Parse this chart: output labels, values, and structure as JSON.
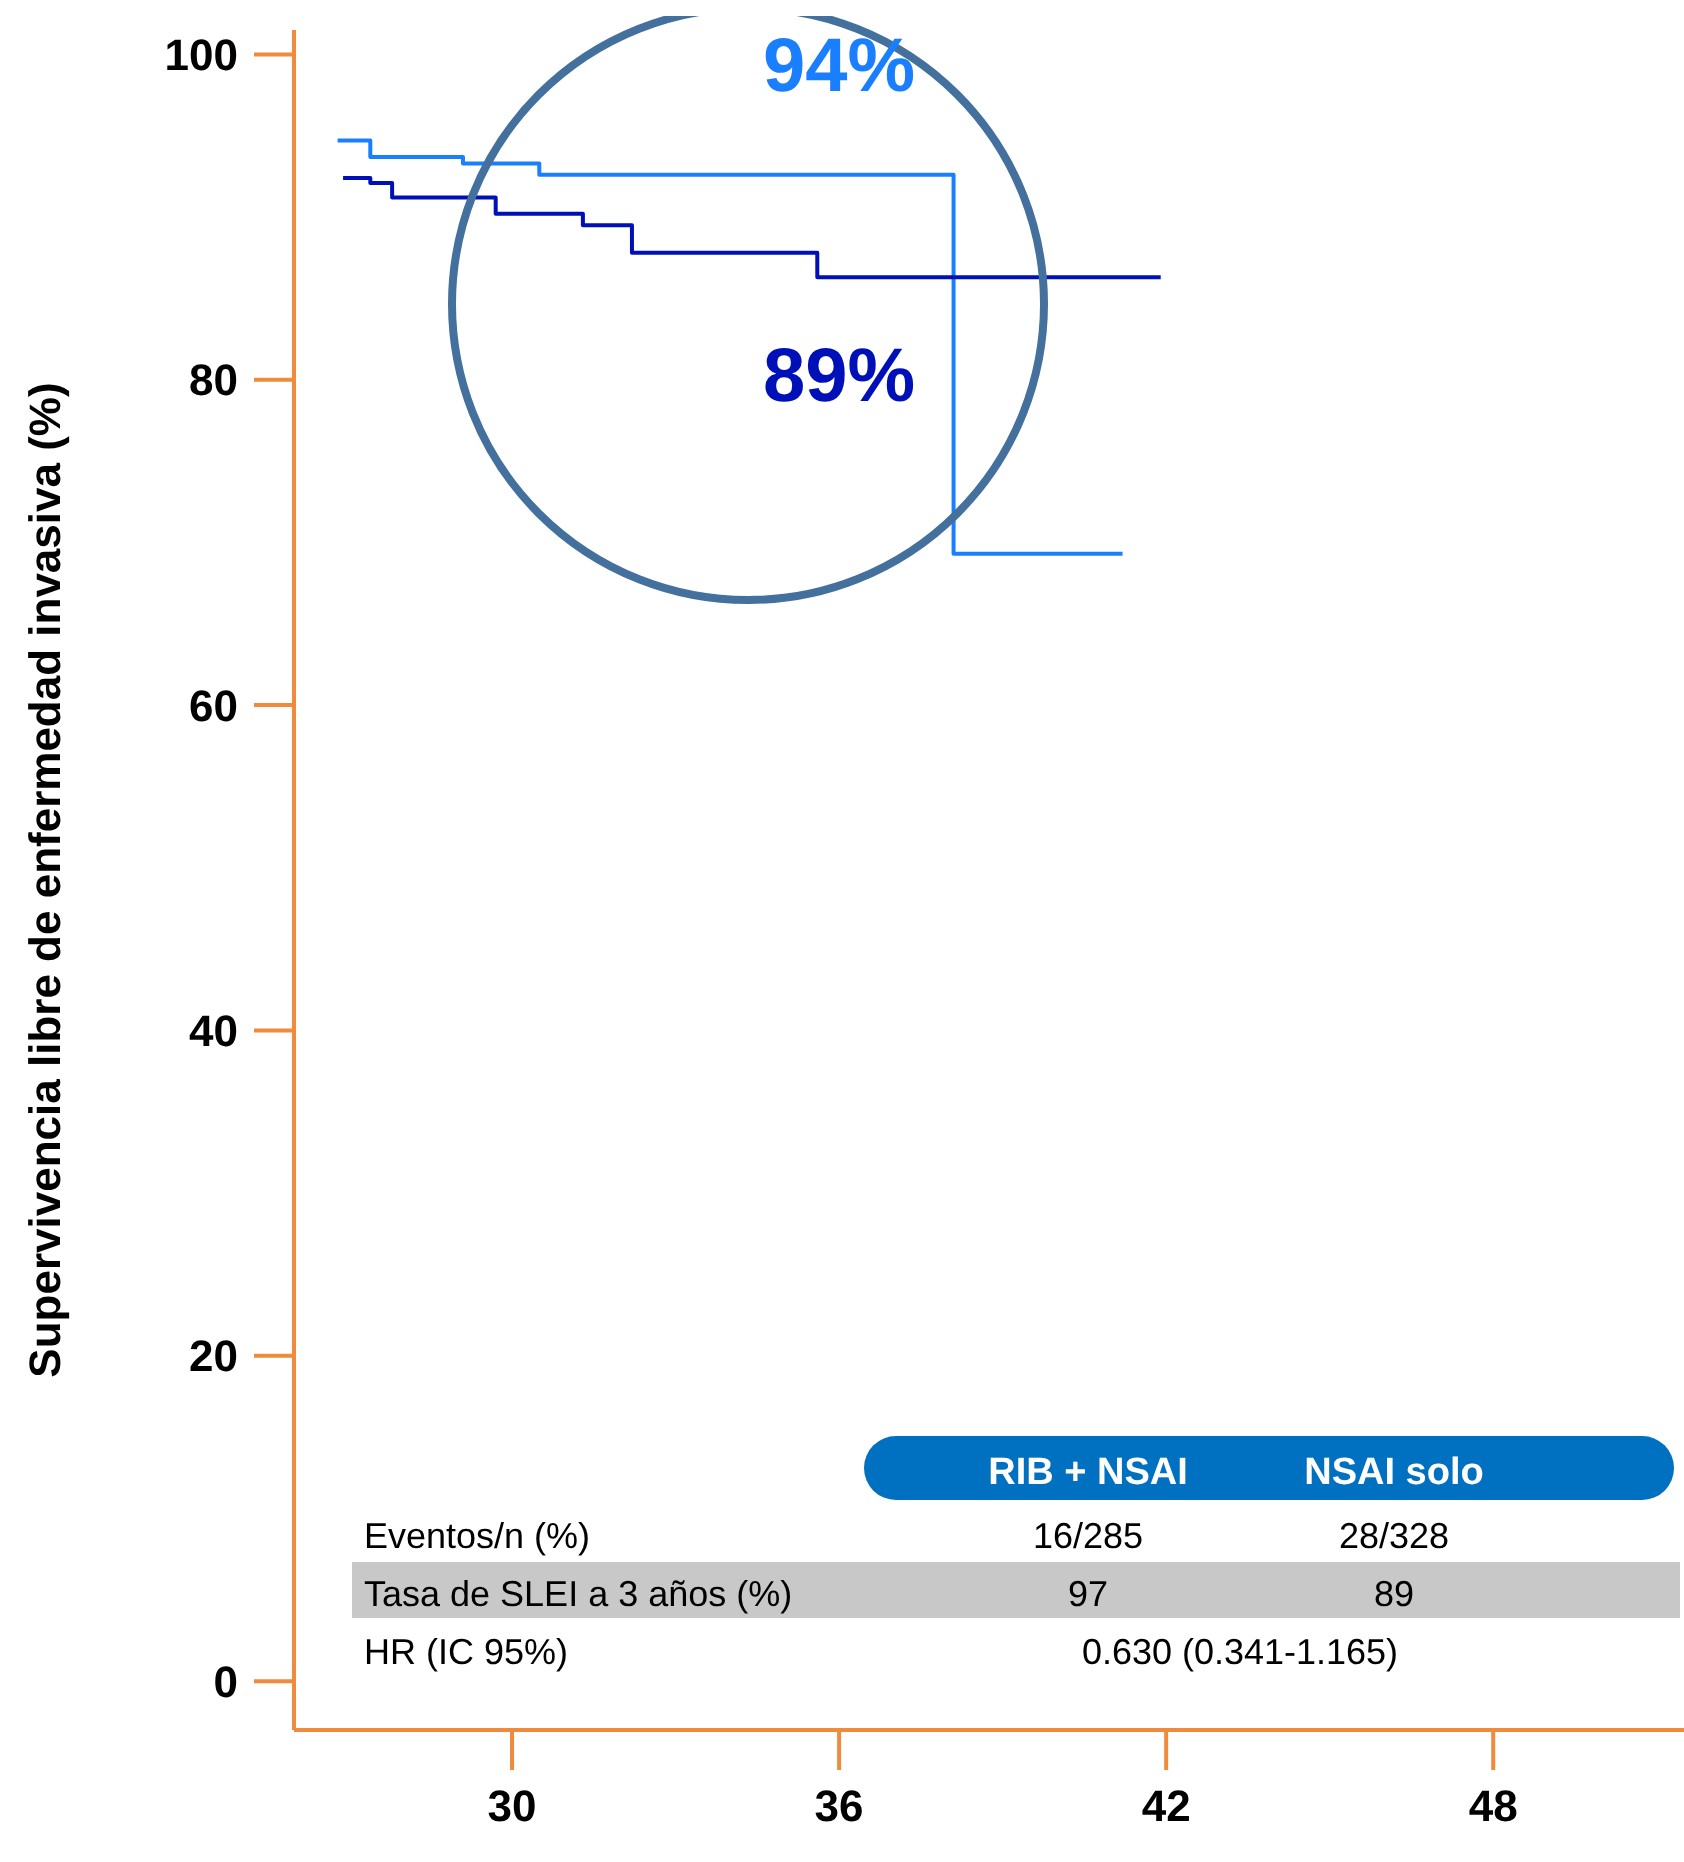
{
  "chart_data": {
    "type": "step",
    "ylabel": "Supervivencia libre de enfermedad invasiva (%)",
    "xlim": [
      26,
      51.5
    ],
    "xticks": [
      30,
      36,
      42,
      48
    ],
    "ylim": [
      -3,
      101.5
    ],
    "yticks": [
      0,
      20,
      40,
      60,
      80,
      100
    ],
    "grid": false,
    "legend": false,
    "series": [
      {
        "color": "#1a7fff",
        "x": [
          26.8,
          27.4,
          29.1,
          30.5,
          38.1,
          41.2
        ],
        "values": [
          94.7,
          93.7,
          93.3,
          92.6,
          69.3,
          69.3
        ]
      },
      {
        "color": "#0010b8",
        "x": [
          26.9,
          27.4,
          27.8,
          29.7,
          31.3,
          32.2,
          35.6,
          41.9
        ],
        "values": [
          92.4,
          92.1,
          91.2,
          90.2,
          89.5,
          87.8,
          86.3,
          86.3
        ]
      }
    ],
    "annotations": [
      {
        "text": "94%",
        "x": 36,
        "y": 92.6
      },
      {
        "text": "89%",
        "x": 36,
        "y": 86.3
      },
      "RIB + NSAI",
      "NSAI solo",
      "Eventos/n (%)",
      "16/285",
      "28/328",
      "Tasa de SLEI a 3 años (%)",
      "97",
      "89",
      "HR (IC 95%)",
      "0.630 (0.341-1.165)"
    ]
  }
}
